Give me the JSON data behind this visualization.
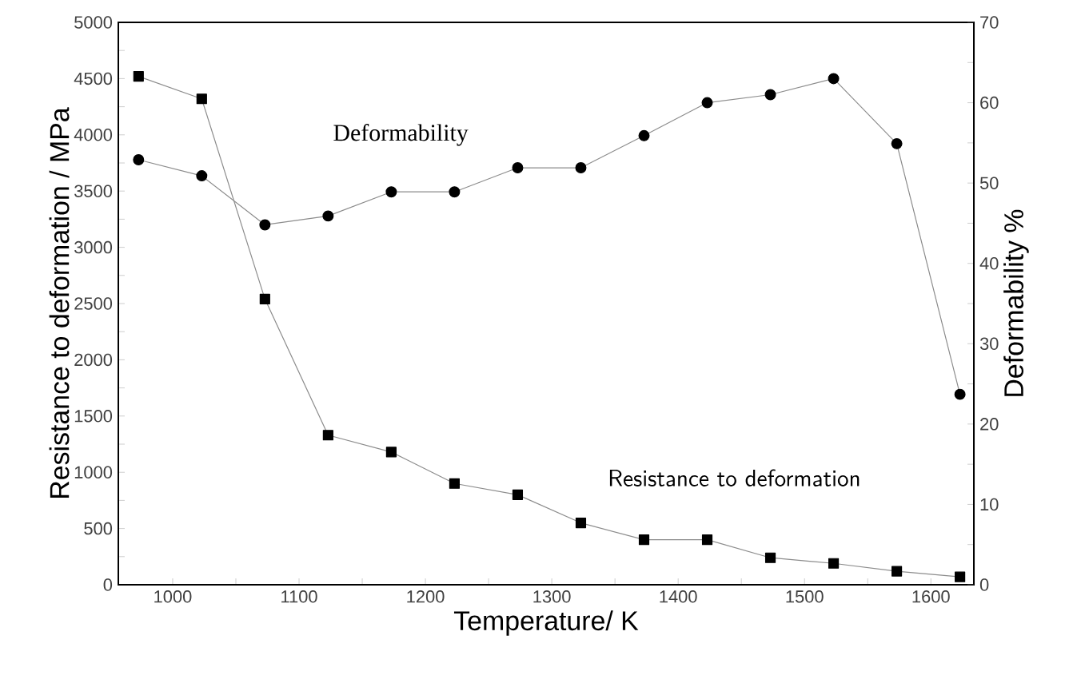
{
  "chart_data": {
    "type": "line",
    "xlabel": "Temperature/  K",
    "ylabel": "Resistance to deformation / MPa",
    "y2label": "Deformability  %",
    "x": [
      973,
      1023,
      1073,
      1123,
      1173,
      1223,
      1273,
      1323,
      1373,
      1423,
      1473,
      1523,
      1573,
      1623
    ],
    "series": [
      {
        "name": "Resistance to deformation",
        "color": "#000000",
        "marker": "square",
        "values": [
          4520,
          4320,
          2540,
          1330,
          1180,
          900,
          800,
          550,
          400,
          400,
          240,
          190,
          120,
          70
        ]
      },
      {
        "name": "Deformability",
        "color": "#000000",
        "marker": "circle",
        "axis": "y2",
        "values": [
          52.9,
          50.9,
          44.8,
          45.9,
          48.9,
          48.9,
          51.9,
          51.9,
          55.9,
          60.0,
          61.0,
          63.0,
          54.9,
          23.7
        ]
      }
    ],
    "xlim": [
      957,
      1634
    ],
    "xticks": [
      1000,
      {
        "value": 1050,
        "label": null
      },
      1100,
      {
        "value": 1150,
        "label": null
      },
      1200,
      {
        "value": 1250,
        "label": null
      },
      1300,
      {
        "value": 1350,
        "label": null
      },
      1400,
      {
        "value": 1450,
        "label": null
      },
      1500,
      {
        "value": 1550,
        "label": null
      },
      1600
    ],
    "ylim": [
      0,
      5000
    ],
    "yticks": [
      0,
      {
        "value": 250,
        "label": null
      },
      500,
      {
        "value": 750,
        "label": null
      },
      1000,
      {
        "value": 1250,
        "label": null
      },
      1500,
      {
        "value": 1750,
        "label": null
      },
      2000,
      {
        "value": 2250,
        "label": null
      },
      2500,
      {
        "value": 2750,
        "label": null
      },
      3000,
      {
        "value": 3250,
        "label": null
      },
      3500,
      {
        "value": 3750,
        "label": null
      },
      4000,
      {
        "value": 4250,
        "label": null
      },
      4500,
      {
        "value": 4750,
        "label": null
      },
      5000
    ],
    "y2lim": [
      0,
      70
    ],
    "y2ticks": [
      0,
      {
        "value": 5,
        "label": null
      },
      10,
      {
        "value": 15,
        "label": null
      },
      20,
      {
        "value": 25,
        "label": null
      },
      30,
      {
        "value": 35,
        "label": null
      },
      40,
      {
        "value": 45,
        "label": null
      },
      50,
      {
        "value": 55,
        "label": null
      },
      60,
      {
        "value": 65,
        "label": null
      },
      70
    ],
    "line_style": "solid"
  }
}
